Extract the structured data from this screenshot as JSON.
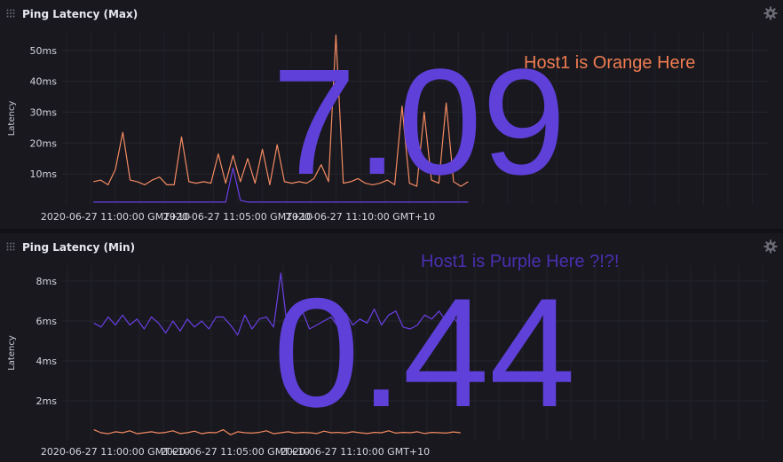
{
  "colors": {
    "orange": "#f48a62",
    "purple": "#6b3fe6",
    "big_value": "#5f40d8",
    "annot_top": "#ef7c52",
    "annot_bottom": "#4b2fb0"
  },
  "panels": [
    {
      "title": "Ping Latency (Max)",
      "big_value": "7.09",
      "annotation": "Host1 is Orange Here",
      "chart_data": {
        "type": "line",
        "title": "Ping Latency (Max)",
        "ylabel": "Latency",
        "xlabel": "",
        "ylim": [
          0,
          56
        ],
        "yticks": [
          10,
          20,
          30,
          40,
          50
        ],
        "ytick_labels": [
          "10ms",
          "20ms",
          "30ms",
          "40ms",
          "50ms"
        ],
        "xticks": [
          0,
          5,
          10
        ],
        "xtick_labels": [
          "2020-06-27 11:00:00 GMT+10",
          "2020-06-27 11:05:00 GMT+10",
          "2020-06-27 11:10:00 GMT+10"
        ],
        "x": [
          -0.9,
          -0.6,
          -0.3,
          0.0,
          0.3,
          0.6,
          0.9,
          1.2,
          1.5,
          1.8,
          2.1,
          2.4,
          2.7,
          3.0,
          3.3,
          3.6,
          3.9,
          4.2,
          4.5,
          4.8,
          5.1,
          5.4,
          5.7,
          6.0,
          6.3,
          6.6,
          6.9,
          7.2,
          7.5,
          7.8,
          8.1,
          8.4,
          8.7,
          9.0,
          9.3,
          9.6,
          9.9,
          10.2,
          10.5,
          10.8,
          11.1,
          11.4,
          11.7,
          12.0,
          12.3,
          12.6,
          12.9,
          13.2,
          13.5,
          13.8,
          14.1,
          14.4
        ],
        "series": [
          {
            "color_key": "orange",
            "values": [
              7.5,
              8,
              6.5,
              11.5,
              23.5,
              8,
              7.5,
              6.5,
              8,
              9,
              6.5,
              6.5,
              22,
              7.5,
              7,
              7.5,
              7,
              16.5,
              7,
              16,
              7.5,
              15,
              7,
              18,
              6.5,
              19.5,
              7.5,
              7,
              7.5,
              7,
              8.5,
              13,
              7.5,
              55,
              7,
              7.5,
              8.5,
              7,
              6.5,
              7,
              8,
              6.5,
              32,
              7,
              6,
              30,
              8,
              7,
              33,
              7.5,
              6,
              7.5
            ]
          },
          {
            "color_key": "purple",
            "values": [
              0.9,
              0.9,
              0.9,
              0.9,
              0.9,
              0.9,
              0.9,
              0.9,
              0.9,
              0.9,
              0.9,
              0.9,
              0.9,
              0.9,
              0.9,
              0.9,
              0.9,
              0.9,
              0.9,
              12,
              1.5,
              0.9,
              0.9,
              0.9,
              0.9,
              0.9,
              0.9,
              0.9,
              0.9,
              0.9,
              0.9,
              0.9,
              0.9,
              0.9,
              0.9,
              0.9,
              0.9,
              0.9,
              0.9,
              0.9,
              0.9,
              0.9,
              0.9,
              0.9,
              0.9,
              0.9,
              0.9,
              0.9,
              0.9,
              0.9,
              0.9,
              0.9
            ]
          }
        ]
      }
    },
    {
      "title": "Ping Latency (Min)",
      "big_value": "0.44",
      "annotation": "Host1 is Purple Here ?!?!",
      "chart_data": {
        "type": "line",
        "title": "Ping Latency (Min)",
        "ylabel": "Latency",
        "xlabel": "",
        "ylim": [
          0,
          8.8
        ],
        "yticks": [
          2,
          4,
          6,
          8
        ],
        "ytick_labels": [
          "2ms",
          "4ms",
          "6ms",
          "8ms"
        ],
        "xticks": [
          0,
          5,
          10
        ],
        "xtick_labels": [
          "2020-06-27 11:00:00 GMT+10",
          "2020-06-27 11:05:00 GMT+10",
          "2020-06-27 11:10:00 GMT+10"
        ],
        "x": [
          -0.9,
          -0.6,
          -0.3,
          0.0,
          0.3,
          0.6,
          0.9,
          1.2,
          1.5,
          1.8,
          2.1,
          2.4,
          2.7,
          3.0,
          3.3,
          3.6,
          3.9,
          4.2,
          4.5,
          4.8,
          5.1,
          5.4,
          5.7,
          6.0,
          6.3,
          6.6,
          6.9,
          7.2,
          7.5,
          7.8,
          8.1,
          8.4,
          8.7,
          9.0,
          9.3,
          9.6,
          9.9,
          10.2,
          10.5,
          10.8,
          11.1,
          11.4,
          11.7,
          12.0,
          12.3,
          12.6,
          12.9,
          13.2,
          13.5,
          13.8,
          14.1,
          14.4
        ],
        "series": [
          {
            "color_key": "purple",
            "values": [
              5.9,
              5.7,
              6.2,
              5.8,
              6.3,
              5.8,
              6.1,
              5.6,
              6.2,
              5.9,
              5.4,
              6.0,
              5.5,
              6.1,
              5.7,
              6.0,
              5.6,
              6.2,
              6.2,
              5.8,
              5.3,
              6.3,
              5.6,
              6.1,
              6.2,
              5.7,
              8.4,
              5.4,
              6.3,
              6.5,
              5.6,
              5.8,
              6.0,
              6.2,
              5.7,
              6.4,
              5.8,
              6.1,
              5.9,
              6.6,
              5.8,
              6.3,
              6.5,
              5.7,
              5.6,
              5.8,
              6.3,
              6.1,
              6.5,
              6.0,
              6.2,
              5.7
            ]
          },
          {
            "color_key": "orange",
            "values": [
              0.55,
              0.4,
              0.35,
              0.45,
              0.4,
              0.5,
              0.35,
              0.4,
              0.45,
              0.38,
              0.42,
              0.5,
              0.36,
              0.4,
              0.48,
              0.35,
              0.42,
              0.4,
              0.55,
              0.3,
              0.45,
              0.4,
              0.38,
              0.42,
              0.5,
              0.35,
              0.4,
              0.45,
              0.38,
              0.42,
              0.4,
              0.36,
              0.48,
              0.4,
              0.42,
              0.38,
              0.45,
              0.4,
              0.36,
              0.42,
              0.4,
              0.5,
              0.38,
              0.42,
              0.4,
              0.45,
              0.36,
              0.42,
              0.4,
              0.38,
              0.44,
              0.4
            ]
          }
        ]
      }
    }
  ]
}
